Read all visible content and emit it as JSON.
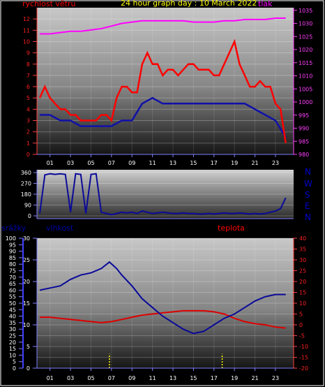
{
  "page": {
    "title": "24 hour graph day : 10 March 2022",
    "labels": {
      "wind": "rychlost větru",
      "pressure": "tlak",
      "rain": "srážky",
      "humidity": "vlhkost",
      "temperature": "teplota"
    },
    "compass": [
      "N",
      "W",
      "S",
      "E",
      "N"
    ]
  },
  "colors": {
    "title": "#ffff00",
    "wind_label": "#ff0000",
    "pressure_label": "#ff00ff",
    "humidity_label": "#0000aa",
    "temperature_label": "#ff0000",
    "wind": "#ff0000",
    "gust_base": "#1010aa",
    "pressure": "#ff00ff",
    "direction": "#0a0a99",
    "humidity": "#0a0a99",
    "temperature": "#dd0000",
    "rain": "#ffff00"
  },
  "chart_data": [
    {
      "type": "line",
      "panel": "wind-pressure",
      "x_ticks": [
        "01",
        "03",
        "05",
        "07",
        "09",
        "11",
        "13",
        "15",
        "17",
        "19",
        "21",
        "23"
      ],
      "y_left_ticks": [
        "0",
        "1",
        "2",
        "3",
        "4",
        "5",
        "6",
        "7",
        "8",
        "9",
        "10",
        "11",
        "12"
      ],
      "y_right_ticks": [
        "980",
        "985",
        "990",
        "995",
        "1000",
        "1005",
        "1010",
        "1015",
        "1020",
        "1025",
        "1030",
        "1035"
      ],
      "ylim_left": [
        0,
        13
      ],
      "ylim_right": [
        980,
        1036
      ],
      "xlim": [
        0,
        24.5
      ],
      "series": [
        {
          "name": "rychlost větru",
          "axis": "left",
          "x": [
            0,
            0.5,
            1,
            1.5,
            2,
            2.5,
            3,
            3.5,
            4,
            4.5,
            5,
            5.5,
            6,
            6.5,
            7,
            7.5,
            8,
            8.5,
            9,
            9.5,
            10,
            10.5,
            11,
            11.5,
            12,
            12.5,
            13,
            13.5,
            14,
            14.5,
            15,
            15.5,
            16,
            16.5,
            17,
            17.5,
            18,
            18.5,
            19,
            19.5,
            20,
            20.5,
            21,
            21.5,
            22,
            22.5,
            23,
            23.5,
            24
          ],
          "values": [
            5,
            6,
            5,
            4.5,
            4,
            4,
            3.5,
            3.5,
            3,
            3,
            3,
            3,
            3.5,
            3.5,
            3,
            5,
            6,
            6,
            5.5,
            5.5,
            8,
            9,
            8,
            8,
            7,
            7.5,
            7.5,
            7,
            7.5,
            8,
            8,
            7.5,
            7.5,
            7.5,
            7,
            7,
            8,
            9,
            10,
            8,
            7,
            6,
            6,
            6.5,
            6,
            6,
            4.5,
            4,
            1
          ]
        },
        {
          "name": "wind base",
          "axis": "left",
          "x": [
            0,
            1,
            2,
            3,
            4,
            5,
            6,
            7,
            8,
            9,
            10,
            11,
            12,
            13,
            14,
            15,
            16,
            17,
            18,
            19,
            20,
            21,
            22,
            23,
            24
          ],
          "values": [
            3.5,
            3.5,
            3,
            3,
            2.5,
            2.5,
            2.5,
            2.5,
            3,
            3,
            4.5,
            5,
            4.5,
            4.5,
            4.5,
            4.5,
            4.5,
            4.5,
            4.5,
            4.5,
            4.5,
            4,
            3.5,
            3,
            1.5
          ]
        },
        {
          "name": "tlak",
          "axis": "right",
          "x": [
            0,
            1,
            2,
            3,
            4,
            5,
            6,
            7,
            8,
            9,
            10,
            11,
            12,
            13,
            14,
            15,
            16,
            17,
            18,
            19,
            20,
            21,
            22,
            23,
            24
          ],
          "values": [
            1026,
            1026,
            1026.5,
            1027,
            1027,
            1027.5,
            1028,
            1029,
            1030,
            1030.5,
            1031,
            1031,
            1031,
            1031,
            1031,
            1030.5,
            1030.5,
            1030.5,
            1031,
            1031,
            1031.5,
            1031.5,
            1031.5,
            1032,
            1032
          ]
        }
      ]
    },
    {
      "type": "line",
      "panel": "wind-direction",
      "y_ticks": [
        "0",
        "90",
        "180",
        "270",
        "360"
      ],
      "ylim": [
        0,
        360
      ],
      "xlim": [
        0,
        24.5
      ],
      "series": [
        {
          "name": "direction",
          "x": [
            0,
            0.5,
            1,
            1.5,
            2,
            2.5,
            3,
            3.5,
            4,
            4.5,
            5,
            5.5,
            6,
            6.5,
            7,
            7.5,
            8,
            8.5,
            9,
            9.5,
            10,
            10.5,
            11,
            11.5,
            12,
            12.5,
            13,
            13.5,
            14,
            14.5,
            15,
            15.5,
            16,
            16.5,
            17,
            17.5,
            18,
            18.5,
            19,
            19.5,
            20,
            20.5,
            21,
            21.5,
            22,
            22.5,
            23,
            23.5,
            24
          ],
          "values": [
            20,
            340,
            350,
            345,
            350,
            345,
            30,
            350,
            345,
            20,
            345,
            350,
            30,
            20,
            10,
            20,
            30,
            25,
            30,
            20,
            40,
            30,
            20,
            25,
            30,
            25,
            20,
            20,
            25,
            20,
            20,
            15,
            15,
            20,
            15,
            20,
            25,
            20,
            20,
            25,
            20,
            15,
            20,
            15,
            20,
            30,
            40,
            60,
            150
          ]
        }
      ]
    },
    {
      "type": "line",
      "panel": "rain-humidity-temperature",
      "x_ticks": [
        "01",
        "03",
        "05",
        "07",
        "09",
        "11",
        "13",
        "15",
        "17",
        "19",
        "21",
        "23"
      ],
      "y_rain_ticks": [
        "0",
        "5",
        "10",
        "15",
        "20",
        "25",
        "30",
        "35",
        "40",
        "45",
        "50",
        "55",
        "60",
        "65",
        "70",
        "75",
        "80",
        "85",
        "90",
        "95",
        "100"
      ],
      "y_humidity_ticks": [
        "0",
        "5",
        "10",
        "15",
        "20",
        "25",
        "30"
      ],
      "y_temperature_ticks": [
        "-20",
        "-15",
        "-10",
        "-5",
        "0",
        "5",
        "10",
        "15",
        "20",
        "25",
        "30",
        "35",
        "40"
      ],
      "ylim_rain": [
        0,
        100
      ],
      "ylim_humidity": [
        0,
        30
      ],
      "ylim_temperature": [
        -20,
        40
      ],
      "xlim": [
        0,
        24.5
      ],
      "series": [
        {
          "name": "vlhkost",
          "axis": "humidity",
          "x": [
            0,
            1,
            2,
            3,
            4,
            5,
            6,
            6.8,
            7.5,
            8,
            9,
            10,
            11,
            12,
            13,
            14,
            15,
            16,
            17,
            18,
            19,
            20,
            21,
            22,
            23,
            24
          ],
          "values": [
            18,
            18.5,
            19,
            20.5,
            21.5,
            22,
            23,
            24.5,
            23,
            21.5,
            19,
            16,
            14,
            12,
            10.5,
            9,
            8,
            8.5,
            10,
            11.5,
            12.5,
            14,
            15.5,
            16.5,
            17,
            17
          ]
        },
        {
          "name": "teplota",
          "axis": "temperature",
          "x": [
            0,
            1,
            2,
            3,
            4,
            5,
            6,
            7,
            8,
            9,
            10,
            11,
            12,
            13,
            14,
            15,
            16,
            17,
            18,
            19,
            20,
            21,
            22,
            23,
            24
          ],
          "values": [
            3.5,
            3.5,
            3,
            2.5,
            2,
            1.5,
            1,
            1.5,
            2.5,
            3.5,
            4.5,
            5,
            5.5,
            6,
            6.5,
            6.5,
            6.5,
            6,
            5,
            3,
            1.5,
            0.5,
            0,
            -1,
            -1.5
          ]
        },
        {
          "name": "rain",
          "axis": "rain",
          "x": [
            6.8,
            17.8
          ],
          "values": [
            5,
            5
          ]
        }
      ]
    }
  ]
}
